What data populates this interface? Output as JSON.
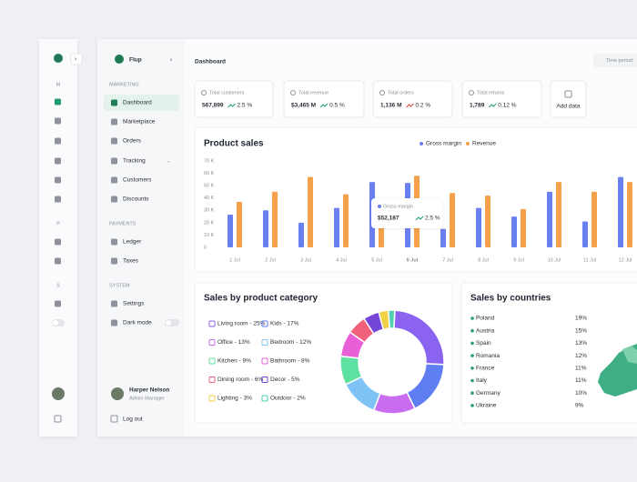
{
  "collapsed_sidebar": {
    "section_labels": [
      "M",
      "P",
      "S"
    ]
  },
  "sidebar": {
    "brand": "Flup",
    "sections": [
      {
        "title": "MARKETING",
        "items": [
          "Dashboard",
          "Marketplace",
          "Orders",
          "Tracking",
          "Customers",
          "Discounts"
        ]
      },
      {
        "title": "PAYMENTS",
        "items": [
          "Ledger",
          "Taxes"
        ]
      },
      {
        "title": "SYSTEM",
        "items": [
          "Settings",
          "Dark mode"
        ]
      }
    ],
    "user": {
      "name": "Harper Nelson",
      "role": "Admin Manager"
    },
    "logout": "Log out"
  },
  "header": {
    "title": "Dashboard",
    "time_period": "Time period:"
  },
  "kpis": [
    {
      "label": "Total customers",
      "value": "567,899",
      "change": "2.5 %",
      "color": "#1f9d6a"
    },
    {
      "label": "Total revenue",
      "value": "$3,465 M",
      "change": "0.5 %",
      "color": "#1f9d6a"
    },
    {
      "label": "Total orders",
      "value": "1,136 M",
      "change": "0.2 %",
      "color": "#e0453a"
    },
    {
      "label": "Total returns",
      "value": "1,789",
      "change": "0.12 %",
      "color": "#1f9d6a"
    }
  ],
  "add_data": "Add data",
  "chart_data": [
    {
      "type": "bar",
      "title": "Product sales",
      "categories": [
        "1 Jul",
        "2 Jul",
        "3 Jul",
        "4 Jul",
        "5 Jul",
        "6 Jul",
        "7 Jul",
        "8 Jul",
        "9 Jul",
        "10 Jul",
        "11 Jul",
        "12 Jul"
      ],
      "series": [
        {
          "name": "Gross margin",
          "color": "#6a7ff0",
          "values": [
            26500,
            30000,
            20000,
            32000,
            53000,
            52187,
            15000,
            32000,
            25000,
            45000,
            21000,
            57000
          ]
        },
        {
          "name": "Revenue",
          "color": "#f5a04a",
          "values": [
            36800,
            45000,
            57000,
            43000,
            32000,
            58000,
            44000,
            42000,
            31000,
            53000,
            45000,
            53000
          ]
        }
      ],
      "ylim": [
        0,
        70000
      ],
      "yticks": [
        0,
        {
          "value": 10000,
          "label": "10 K"
        },
        {
          "value": 20000,
          "label": "20 K"
        },
        {
          "value": 30000,
          "label": "30 K"
        },
        {
          "value": 40000,
          "label": "40 K"
        },
        {
          "value": 50000,
          "label": "50 K"
        },
        {
          "value": 60000,
          "label": "60 K"
        },
        {
          "value": 70000,
          "label": "70 K"
        }
      ],
      "grid": false,
      "legend": "top-right",
      "tooltip": {
        "value": "$52,187",
        "change": "2.5 %"
      }
    },
    {
      "type": "pie",
      "title": "Sales by product category",
      "categories": [
        "Living room - 25%",
        "Kids - 17%",
        "Office - 13%",
        "Bedroom - 12%",
        "Kitchen - 9%",
        "Bathroom - 8%",
        "Dining room - 6%",
        "Decor - 5%",
        "Lighting - 3%",
        "Outdoor - 2%"
      ],
      "values": [
        25,
        17,
        13,
        12,
        9,
        8,
        6,
        5,
        3,
        2
      ],
      "colors": [
        "#8a63f0",
        "#5f7ef2",
        "#c86cf0",
        "#7dc3f5",
        "#5ee0a0",
        "#e85fd8",
        "#f0607a",
        "#7646d8",
        "#f2d045",
        "#4fd0b0"
      ]
    }
  ],
  "countries": {
    "title": "Sales by countries",
    "rows": [
      [
        "Poland",
        "19%"
      ],
      [
        "Austria",
        "15%"
      ],
      [
        "Spain",
        "13%"
      ],
      [
        "Romania",
        "12%"
      ],
      [
        "France",
        "11%"
      ],
      [
        "Italy",
        "11%"
      ],
      [
        "Germany",
        "10%"
      ],
      [
        "Ukraine",
        "9%"
      ]
    ]
  }
}
